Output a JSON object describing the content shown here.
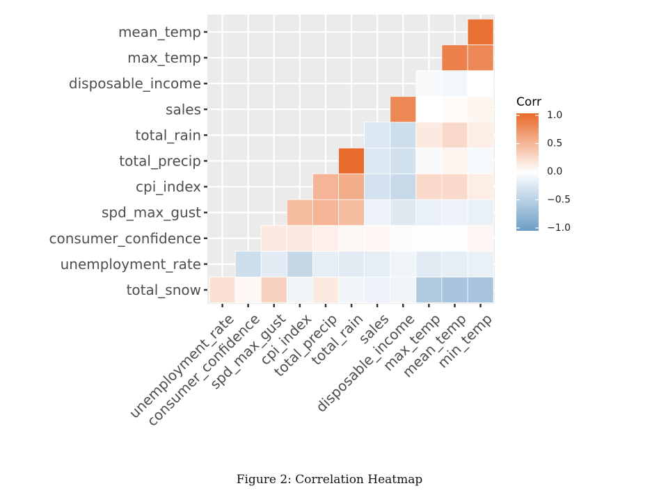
{
  "caption": "Figure 2: Correlation Heatmap",
  "colors": {
    "low": "#6d9dc5",
    "mid": "#ffffff",
    "high": "#e8692a",
    "panel_background": "#ebebeb",
    "gridline": "#ffffff"
  },
  "chart_data": {
    "type": "heatmap",
    "title": "",
    "xlabel": "",
    "ylabel": "",
    "x_categories": [
      "unemployment_rate",
      "consumer_confidence",
      "spd_max_gust",
      "cpi_index",
      "total_precip",
      "total_rain",
      "sales",
      "disposable_income",
      "max_temp",
      "mean_temp",
      "min_temp"
    ],
    "y_categories": [
      "total_snow",
      "unemployment_rate",
      "consumer_confidence",
      "spd_max_gust",
      "cpi_index",
      "total_precip",
      "total_rain",
      "sales",
      "disposable_income",
      "max_temp",
      "mean_temp"
    ],
    "values": [
      [
        0.2,
        0.05,
        0.3,
        -0.1,
        0.15,
        -0.1,
        -0.12,
        -0.1,
        -0.55,
        -0.6,
        -0.6
      ],
      [
        null,
        -0.35,
        -0.2,
        -0.4,
        -0.18,
        -0.2,
        -0.18,
        -0.1,
        -0.2,
        -0.18,
        -0.15
      ],
      [
        null,
        null,
        0.15,
        0.15,
        0.1,
        0.05,
        0.06,
        -0.03,
        -0.02,
        -0.02,
        0.06
      ],
      [
        null,
        null,
        null,
        0.45,
        0.5,
        0.45,
        -0.12,
        -0.22,
        -0.15,
        -0.12,
        -0.15
      ],
      [
        null,
        null,
        null,
        null,
        0.5,
        0.55,
        -0.3,
        -0.38,
        0.25,
        0.25,
        0.12
      ],
      [
        null,
        null,
        null,
        null,
        null,
        0.98,
        -0.25,
        -0.32,
        -0.05,
        0.07,
        -0.06
      ],
      [
        null,
        null,
        null,
        null,
        null,
        null,
        -0.25,
        -0.35,
        0.15,
        0.25,
        0.12
      ],
      [
        null,
        null,
        null,
        null,
        null,
        null,
        null,
        0.8,
        0.0,
        0.03,
        0.07
      ],
      [
        null,
        null,
        null,
        null,
        null,
        null,
        null,
        null,
        -0.05,
        -0.08,
        0.0
      ],
      [
        null,
        null,
        null,
        null,
        null,
        null,
        null,
        null,
        null,
        0.85,
        0.8
      ],
      [
        null,
        null,
        null,
        null,
        null,
        null,
        null,
        null,
        null,
        null,
        0.95
      ]
    ],
    "legend": {
      "title": "Corr",
      "breaks": [
        1.0,
        0.5,
        0.0,
        -0.5,
        -1.0
      ],
      "labels": [
        "1.0",
        "0.5",
        "0.0",
        "−0.5",
        "−1.0"
      ],
      "position": "right"
    },
    "value_range": [
      -1,
      1
    ],
    "grid": true
  }
}
